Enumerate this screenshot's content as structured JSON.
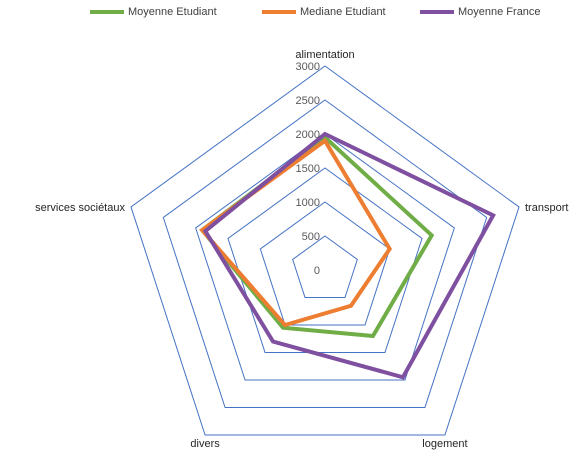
{
  "chart_data": {
    "type": "radar",
    "categories": [
      "alimentation",
      "transport",
      "logement",
      "divers",
      "services sociétaux"
    ],
    "r_ticks": [
      0,
      500,
      1000,
      1500,
      2000,
      2500,
      3000
    ],
    "rlim": [
      0,
      3000
    ],
    "grid": true,
    "legend_position": "top",
    "series": [
      {
        "name": "Moyenne Etudiant",
        "color": "#70ad47",
        "values": [
          1950,
          1650,
          1200,
          1050,
          1900
        ]
      },
      {
        "name": "Mediane Etudiant",
        "color": "#ed7d31",
        "values": [
          1900,
          1000,
          650,
          1000,
          1900
        ]
      },
      {
        "name": "Moyenne France",
        "color": "#7f4fa0",
        "values": [
          2000,
          2600,
          1950,
          1300,
          1850
        ]
      }
    ],
    "grid_color": "#4472c4"
  }
}
